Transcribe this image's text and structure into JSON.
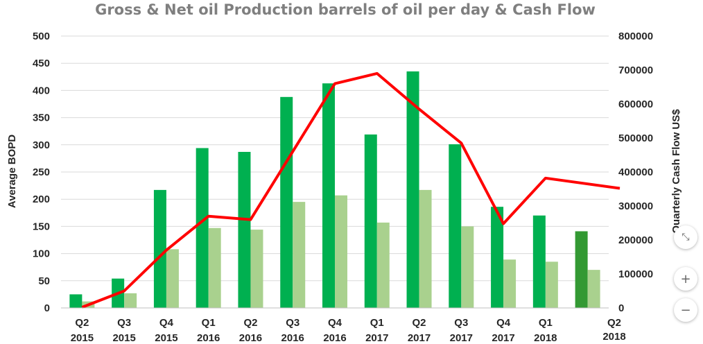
{
  "chart_data": {
    "type": "bar",
    "title": "Gross & Net oil Production barrels of oil per day  & Cash Flow",
    "ylabel": "Average BOPD",
    "y2label": "Quarterly Cash Flow US$",
    "ylim": [
      0,
      500
    ],
    "y2lim": [
      0,
      800000
    ],
    "yticks": [
      0,
      50,
      100,
      150,
      200,
      250,
      300,
      350,
      400,
      450,
      500
    ],
    "y2ticks": [
      0,
      100000,
      200000,
      300000,
      400000,
      500000,
      600000,
      700000,
      800000
    ],
    "grid": true,
    "categories": [
      [
        "Q2",
        "2015"
      ],
      [
        "Q3",
        "2015"
      ],
      [
        "Q4",
        "2015"
      ],
      [
        "Q1",
        "2016"
      ],
      [
        "Q2",
        "2016"
      ],
      [
        "Q3",
        "2016"
      ],
      [
        "Q4",
        "2016"
      ],
      [
        "Q1",
        "2017"
      ],
      [
        "Q2",
        "2017"
      ],
      [
        "Q3",
        "2017"
      ],
      [
        "Q4",
        "2017"
      ],
      [
        "Q1",
        "2018"
      ],
      [
        "Q2",
        "2018"
      ]
    ],
    "series": [
      {
        "type": "bar",
        "axis": "left",
        "color": "#00b050",
        "values": [
          25,
          54,
          217,
          294,
          287,
          388,
          413,
          319,
          435,
          301,
          186,
          170,
          141
        ]
      },
      {
        "type": "bar",
        "axis": "left",
        "color": "#a9d18e",
        "values": [
          12,
          27,
          108,
          147,
          144,
          195,
          207,
          157,
          217,
          150,
          89,
          85,
          70
        ]
      },
      {
        "type": "line",
        "axis": "right",
        "color": "#ff0000",
        "values": [
          2000,
          50000,
          170000,
          270000,
          260000,
          460000,
          660000,
          690000,
          585000,
          485000,
          248000,
          382000,
          352000
        ]
      }
    ]
  },
  "zoom_controls": {
    "fit": "⤡",
    "zoom_in": "+",
    "zoom_out": "−"
  }
}
